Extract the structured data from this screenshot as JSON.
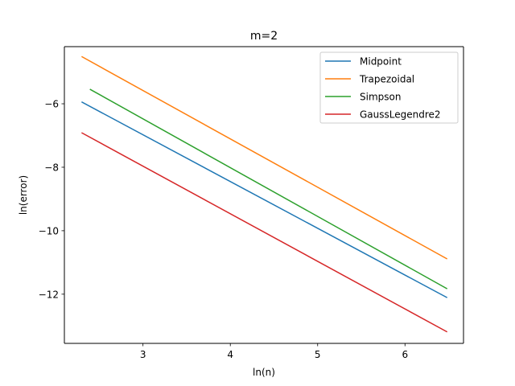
{
  "chart_data": {
    "type": "line",
    "title": "m=2",
    "xlabel": "ln(n)",
    "ylabel": "ln(error)",
    "xlim": [
      2.1,
      6.67
    ],
    "ylim": [
      -13.55,
      -4.2
    ],
    "xticks": [
      3,
      4,
      5,
      6
    ],
    "yticks": [
      -12,
      -10,
      -8,
      -6
    ],
    "grid": false,
    "legend": "top-right",
    "series": [
      {
        "name": "Midpoint",
        "color": "#1f77b4",
        "x": [
          2.303,
          6.477
        ],
        "y": [
          -5.95,
          -12.1
        ]
      },
      {
        "name": "Trapezoidal",
        "color": "#ff7f0e",
        "x": [
          2.303,
          6.477
        ],
        "y": [
          -4.52,
          -10.88
        ]
      },
      {
        "name": "Simpson",
        "color": "#2ca02c",
        "x": [
          2.398,
          6.477
        ],
        "y": [
          -5.55,
          -11.82
        ]
      },
      {
        "name": "GaussLegendre2",
        "color": "#d62728",
        "x": [
          2.303,
          6.477
        ],
        "y": [
          -6.92,
          -13.18
        ]
      }
    ]
  }
}
